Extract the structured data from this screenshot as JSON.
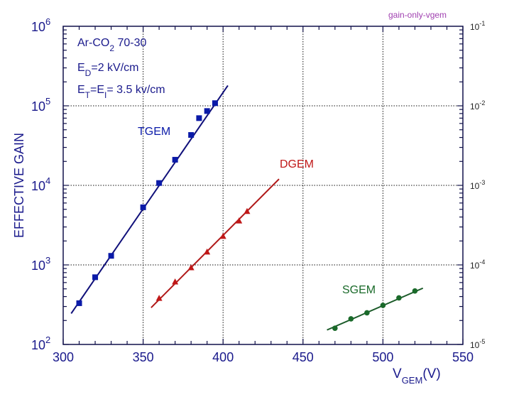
{
  "chart_data": {
    "type": "scatter",
    "tag": "gain-only-vgem",
    "title": "",
    "xlabel": {
      "main": "V",
      "sub": "GEM",
      "suffix": "(V)"
    },
    "ylabel": "EFFECTIVE GAIN",
    "xlim": [
      300,
      550
    ],
    "ylim": [
      100,
      1000000
    ],
    "yscale": "log",
    "x_ticks": [
      "300",
      "350",
      "400",
      "450",
      "500",
      "550"
    ],
    "y_ticks": [
      {
        "base": "10",
        "exp": "2"
      },
      {
        "base": "10",
        "exp": "3"
      },
      {
        "base": "10",
        "exp": "4"
      },
      {
        "base": "10",
        "exp": "5"
      },
      {
        "base": "10",
        "exp": "6"
      }
    ],
    "y2_ticks": [
      {
        "base": "10",
        "exp": "-5"
      },
      {
        "base": "10",
        "exp": "-4"
      },
      {
        "base": "10",
        "exp": "-3"
      },
      {
        "base": "10",
        "exp": "-2"
      },
      {
        "base": "10",
        "exp": "-1"
      }
    ],
    "grid": "dotted",
    "annotations": [
      {
        "parts": [
          {
            "t": "Ar-CO"
          },
          {
            "t": "2",
            "sub": true
          },
          {
            "t": " 70-30"
          }
        ]
      },
      {
        "parts": [
          {
            "t": "E"
          },
          {
            "t": "D",
            "sub": true
          },
          {
            "t": "=2 kV/cm"
          }
        ]
      },
      {
        "parts": [
          {
            "t": "E"
          },
          {
            "t": "T",
            "sub": true
          },
          {
            "t": "=E"
          },
          {
            "t": "I",
            "sub": true
          },
          {
            "t": "= 3.5 kv/cm"
          }
        ]
      }
    ],
    "series": [
      {
        "name": "TGEM",
        "color": "#0a1aa8",
        "line_color": "#10107a",
        "marker": "square",
        "x": [
          310,
          320,
          330,
          350,
          360,
          370,
          380,
          385,
          390,
          395
        ],
        "y": [
          330,
          700,
          1300,
          5300,
          10700,
          21000,
          43000,
          70000,
          86000,
          108000
        ],
        "fit": {
          "x": [
            305,
            403
          ],
          "y": [
            245,
            180000
          ]
        }
      },
      {
        "name": "DGEM",
        "color": "#c01818",
        "line_color": "#b01818",
        "marker": "triangle",
        "x": [
          360,
          370,
          380,
          390,
          400,
          410,
          415
        ],
        "y": [
          380,
          610,
          920,
          1450,
          2280,
          3570,
          4700
        ],
        "fit": {
          "x": [
            355,
            435
          ],
          "y": [
            290,
            12000
          ]
        }
      },
      {
        "name": "SGEM",
        "color": "#1a6a2a",
        "line_color": "#1a5a28",
        "marker": "circle",
        "x": [
          470,
          480,
          490,
          500,
          510,
          520
        ],
        "y": [
          160,
          210,
          250,
          310,
          385,
          470
        ],
        "fit": {
          "x": [
            465,
            525
          ],
          "y": [
            152,
            510
          ]
        }
      }
    ]
  }
}
